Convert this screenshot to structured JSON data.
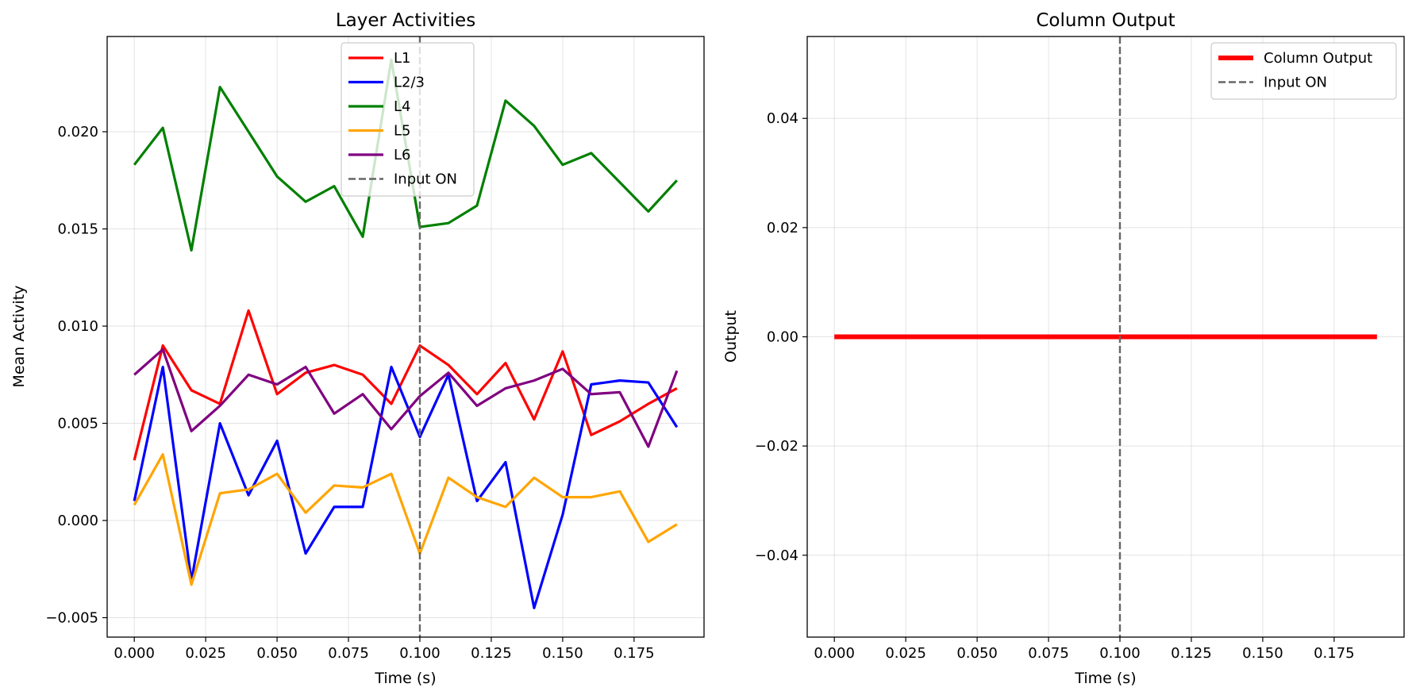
{
  "chart_data": [
    {
      "type": "line",
      "title": "Layer Activities",
      "xlabel": "Time (s)",
      "ylabel": "Mean Activity",
      "xlim": [
        -0.0095,
        0.1995
      ],
      "ylim": [
        -0.006,
        0.0249
      ],
      "xticks": [
        0.0,
        0.025,
        0.05,
        0.075,
        0.1,
        0.125,
        0.15,
        0.175
      ],
      "xtick_labels": [
        "0.000",
        "0.025",
        "0.050",
        "0.075",
        "0.100",
        "0.125",
        "0.150",
        "0.175"
      ],
      "yticks": [
        -0.005,
        0.0,
        0.005,
        0.01,
        0.015,
        0.02
      ],
      "ytick_labels": [
        "−0.005",
        "0.000",
        "0.005",
        "0.010",
        "0.015",
        "0.020"
      ],
      "grid": true,
      "legend_position": "top-center",
      "x": [
        0.0,
        0.01,
        0.02,
        0.03,
        0.04,
        0.05,
        0.06,
        0.07,
        0.08,
        0.09,
        0.1,
        0.11,
        0.12,
        0.13,
        0.14,
        0.15,
        0.16,
        0.17,
        0.18,
        0.19
      ],
      "series": [
        {
          "name": "L1",
          "color": "#ff0000",
          "style": "solid",
          "values": [
            0.0031,
            0.009,
            0.0067,
            0.006,
            0.0108,
            0.0065,
            0.0076,
            0.008,
            0.0075,
            0.006,
            0.009,
            0.008,
            0.0065,
            0.0081,
            0.0052,
            0.0087,
            0.0044,
            0.0051,
            0.006,
            0.0068
          ]
        },
        {
          "name": "L2/3",
          "color": "#0000ff",
          "style": "solid",
          "values": [
            0.001,
            0.0079,
            -0.0031,
            0.005,
            0.0013,
            0.0041,
            -0.0017,
            0.0007,
            0.0007,
            0.0079,
            0.0043,
            0.0075,
            0.001,
            0.003,
            -0.0045,
            0.0003,
            0.007,
            0.0072,
            0.0071,
            0.0048
          ]
        },
        {
          "name": "L4",
          "color": "#008000",
          "style": "solid",
          "values": [
            0.0183,
            0.0202,
            0.0139,
            0.0223,
            0.02,
            0.0177,
            0.0164,
            0.0172,
            0.0146,
            0.0237,
            0.0151,
            0.0153,
            0.0162,
            0.0216,
            0.0203,
            0.0183,
            0.0189,
            0.0174,
            0.0159,
            0.0175
          ]
        },
        {
          "name": "L5",
          "color": "#ffa500",
          "style": "solid",
          "values": [
            0.0008,
            0.0034,
            -0.0033,
            0.0014,
            0.0016,
            0.0024,
            0.0004,
            0.0018,
            0.0017,
            0.0024,
            -0.0017,
            0.0022,
            0.0012,
            0.0007,
            0.0022,
            0.0012,
            0.0012,
            0.0015,
            -0.0011,
            -0.0002
          ]
        },
        {
          "name": "L6",
          "color": "#800080",
          "style": "solid",
          "values": [
            0.0075,
            0.0088,
            0.0046,
            0.0059,
            0.0075,
            0.007,
            0.0079,
            0.0055,
            0.0065,
            0.0047,
            0.0064,
            0.0076,
            0.0059,
            0.0068,
            0.0072,
            0.0078,
            0.0065,
            0.0066,
            0.0038,
            0.0077
          ]
        }
      ],
      "vlines": [
        {
          "name": "Input ON",
          "x": 0.1,
          "color": "#666666",
          "style": "dashed"
        }
      ]
    },
    {
      "type": "line",
      "title": "Column Output",
      "xlabel": "Time (s)",
      "ylabel": "Output",
      "xlim": [
        -0.0095,
        0.1995
      ],
      "ylim": [
        -0.055,
        0.055
      ],
      "xticks": [
        0.0,
        0.025,
        0.05,
        0.075,
        0.1,
        0.125,
        0.15,
        0.175
      ],
      "xtick_labels": [
        "0.000",
        "0.025",
        "0.050",
        "0.075",
        "0.100",
        "0.125",
        "0.150",
        "0.175"
      ],
      "yticks": [
        -0.04,
        -0.02,
        0.0,
        0.02,
        0.04
      ],
      "ytick_labels": [
        "−0.04",
        "−0.02",
        "0.00",
        "0.02",
        "0.04"
      ],
      "grid": true,
      "legend_position": "top-right",
      "x": [
        0.0,
        0.01,
        0.02,
        0.03,
        0.04,
        0.05,
        0.06,
        0.07,
        0.08,
        0.09,
        0.1,
        0.11,
        0.12,
        0.13,
        0.14,
        0.15,
        0.16,
        0.17,
        0.18,
        0.19
      ],
      "series": [
        {
          "name": "Column Output",
          "color": "#ff0000",
          "style": "solid",
          "thick": true,
          "values": [
            0,
            0,
            0,
            0,
            0,
            0,
            0,
            0,
            0,
            0,
            0,
            0,
            0,
            0,
            0,
            0,
            0,
            0,
            0,
            0
          ]
        }
      ],
      "vlines": [
        {
          "name": "Input ON",
          "x": 0.1,
          "color": "#666666",
          "style": "dashed"
        }
      ]
    }
  ]
}
